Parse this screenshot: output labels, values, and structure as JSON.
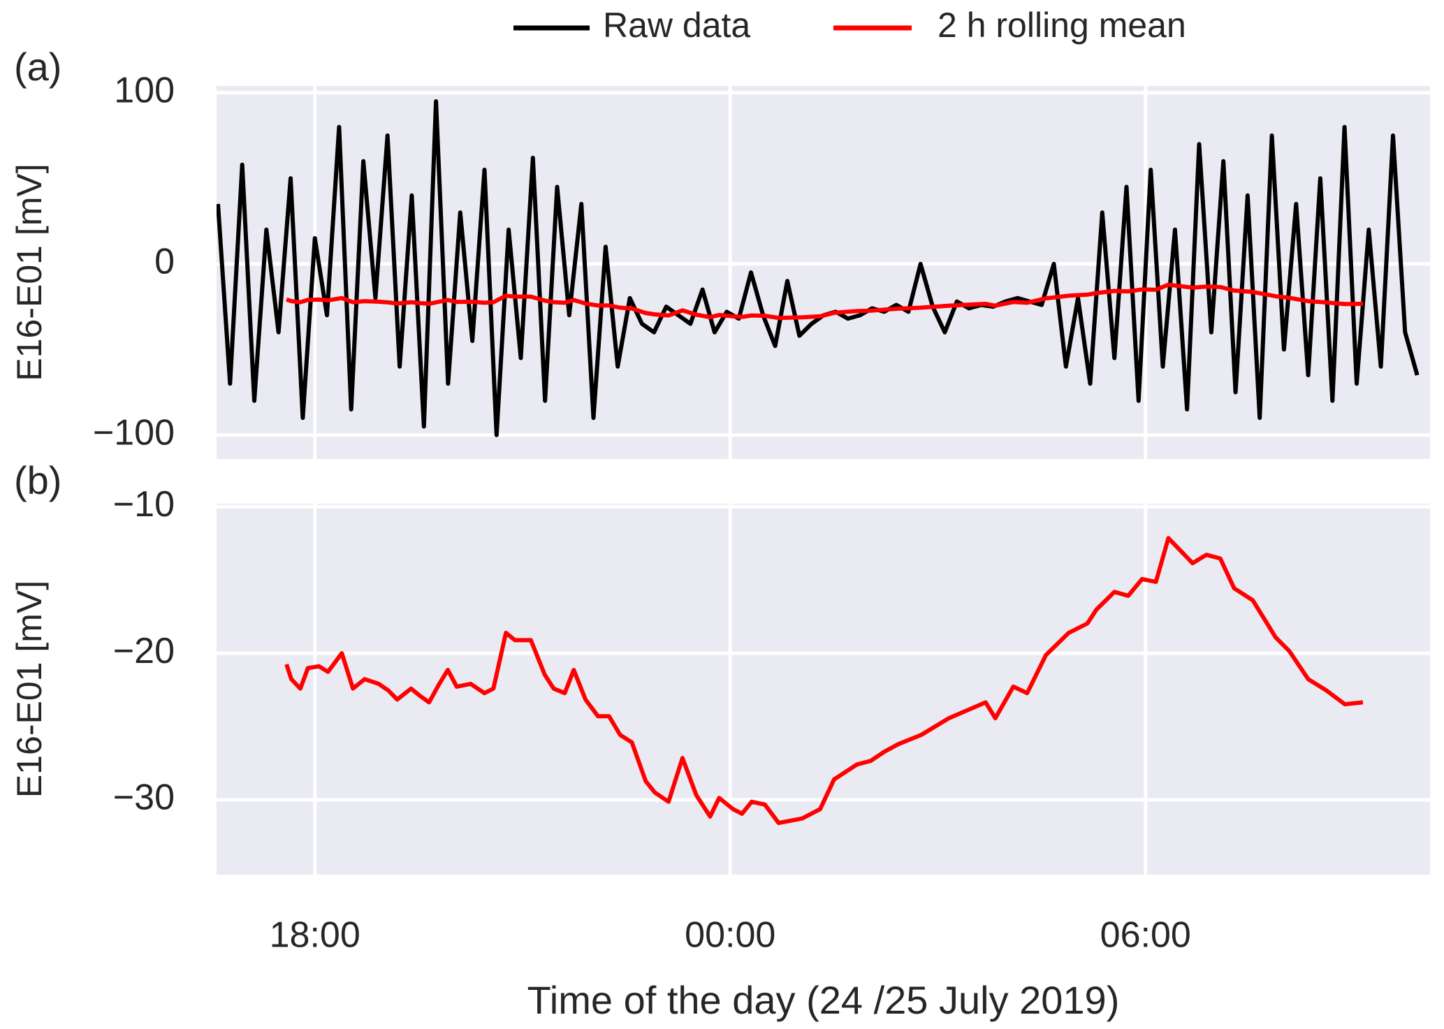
{
  "chart_data": [
    {
      "type": "line",
      "label": "(a)",
      "ylabel": "E16-E01 [mV]",
      "xlim": [
        16.58,
        34.11
      ],
      "ylim": [
        -114,
        104
      ],
      "yticks": [
        100,
        0,
        {
          "value": -100,
          "label": "−100"
        }
      ],
      "grid": true,
      "legend": "top",
      "series": [
        {
          "name": "Raw data",
          "color": "#000000",
          "x": [
            16.6,
            16.775,
            16.95,
            17.125,
            17.3,
            17.475,
            17.65,
            17.825,
            18,
            18.175,
            18.35,
            18.525,
            18.7,
            18.875,
            19.05,
            19.225,
            19.4,
            19.575,
            19.75,
            19.925,
            20.1,
            20.275,
            20.45,
            20.625,
            20.8,
            20.975,
            21.15,
            21.325,
            21.5,
            21.675,
            21.85,
            22.025,
            22.2,
            22.375,
            22.55,
            22.725,
            22.9,
            23.075,
            23.25,
            23.425,
            23.6,
            23.775,
            23.95,
            24.125,
            24.3,
            24.475,
            24.65,
            24.825,
            25,
            25.175,
            25.35,
            25.525,
            25.7,
            25.875,
            26.05,
            26.225,
            26.4,
            26.575,
            26.75,
            26.925,
            27.1,
            27.275,
            27.45,
            27.625,
            27.8,
            27.975,
            28.15,
            28.325,
            28.5,
            28.675,
            28.85,
            29.025,
            29.2,
            29.375,
            29.55,
            29.725,
            29.9,
            30.075,
            30.25,
            30.425,
            30.6,
            30.775,
            30.95,
            31.125,
            31.3,
            31.475,
            31.65,
            31.825,
            32,
            32.175,
            32.35,
            32.525,
            32.7,
            32.875,
            33.05,
            33.225,
            33.4,
            33.575,
            33.75,
            33.925
          ],
          "values": [
            35,
            -70,
            58,
            -80,
            20,
            -40,
            50,
            -90,
            15,
            -30,
            80,
            -85,
            60,
            -20,
            75,
            -60,
            40,
            -95,
            95,
            -70,
            30,
            -45,
            55,
            -100,
            20,
            -55,
            62,
            -80,
            45,
            -30,
            35,
            -90,
            10,
            -60,
            -20,
            -35,
            -40,
            -25,
            -30,
            -35,
            -15,
            -40,
            -28,
            -32,
            -5,
            -30,
            -48,
            -10,
            -42,
            -35,
            -30,
            -28,
            -32,
            -30,
            -26,
            -28,
            -24,
            -28,
            0,
            -25,
            -40,
            -22,
            -26,
            -24,
            -25,
            -22,
            -20,
            -22,
            -24,
            0,
            -60,
            -20,
            -70,
            30,
            -55,
            45,
            -80,
            55,
            -60,
            20,
            -85,
            70,
            -40,
            60,
            -75,
            40,
            -90,
            75,
            -50,
            35,
            -65,
            50,
            -80,
            80,
            -70,
            20,
            -60,
            75,
            -40,
            -65
          ]
        },
        {
          "name": "2 h rolling mean",
          "color": "#ff0000",
          "x": [
            17.59,
            17.66,
            17.79,
            17.9,
            18.06,
            18.19,
            18.39,
            18.55,
            18.72,
            18.92,
            19.06,
            19.19,
            19.39,
            19.52,
            19.65,
            19.79,
            19.92,
            20.05,
            20.25,
            20.45,
            20.58,
            20.76,
            20.89,
            21.12,
            21.32,
            21.45,
            21.61,
            21.74,
            21.91,
            22.09,
            22.25,
            22.41,
            22.58,
            22.78,
            22.91,
            23.11,
            23.31,
            23.51,
            23.71,
            23.84,
            24.04,
            24.17,
            24.31,
            24.5,
            24.7,
            25.04,
            25.3,
            25.5,
            25.83,
            26.03,
            26.23,
            26.43,
            26.76,
            27.16,
            27.69,
            27.83,
            28.09,
            28.29,
            28.56,
            28.89,
            29.16,
            29.29,
            29.55,
            29.75,
            29.95,
            30.15,
            30.33,
            30.46,
            30.68,
            30.88,
            31.08,
            31.28,
            31.55,
            31.88,
            32.08,
            32.35,
            32.61,
            32.88,
            33.14
          ],
          "values": [
            -20.76,
            -21.77,
            -22.41,
            -21.01,
            -20.89,
            -21.27,
            -20,
            -22.41,
            -21.77,
            -22.09,
            -22.53,
            -23.16,
            -22.41,
            -22.91,
            -23.35,
            -22.15,
            -21.14,
            -22.28,
            -22.09,
            -22.72,
            -22.41,
            -18.61,
            -19.11,
            -19.11,
            -21.46,
            -22.41,
            -22.72,
            -21.14,
            -23.16,
            -24.3,
            -24.3,
            -25.57,
            -26.08,
            -28.73,
            -29.49,
            -30.13,
            -27.15,
            -29.68,
            -31.14,
            -29.87,
            -30.63,
            -30.95,
            -30.13,
            -30.32,
            -31.58,
            -31.27,
            -30.63,
            -28.61,
            -27.59,
            -27.34,
            -26.71,
            -26.2,
            -25.57,
            -24.43,
            -23.35,
            -24.43,
            -22.28,
            -22.72,
            -20.13,
            -18.61,
            -17.97,
            -17.03,
            -15.82,
            -16.08,
            -14.94,
            -15.13,
            -12.15,
            -12.78,
            -13.86,
            -13.29,
            -13.54,
            -15.57,
            -16.39,
            -18.92,
            -19.87,
            -21.77,
            -22.53,
            -23.48,
            -23.35
          ]
        }
      ]
    },
    {
      "type": "line",
      "label": "(b)",
      "ylabel": "E16-E01 [mV]",
      "xlabel": "Time of the day (24 /25 July 2019)",
      "xlim": [
        16.58,
        34.11
      ],
      "ylim": [
        -35.1,
        -9.8
      ],
      "xticks": [
        {
          "value": 18,
          "label": "18:00"
        },
        {
          "value": 24,
          "label": "00:00"
        },
        {
          "value": 30,
          "label": "06:00"
        }
      ],
      "yticks": [
        {
          "value": -10,
          "label": "−10"
        },
        {
          "value": -20,
          "label": "−20"
        },
        {
          "value": -30,
          "label": "−30"
        }
      ],
      "grid": true,
      "series": [
        {
          "color": "#ff0000",
          "x": [
            17.59,
            17.66,
            17.79,
            17.9,
            18.06,
            18.19,
            18.39,
            18.55,
            18.72,
            18.92,
            19.06,
            19.19,
            19.39,
            19.52,
            19.65,
            19.79,
            19.92,
            20.05,
            20.25,
            20.45,
            20.58,
            20.76,
            20.89,
            21.12,
            21.32,
            21.45,
            21.61,
            21.74,
            21.91,
            22.09,
            22.25,
            22.41,
            22.58,
            22.78,
            22.91,
            23.11,
            23.31,
            23.51,
            23.71,
            23.84,
            24.04,
            24.17,
            24.31,
            24.5,
            24.7,
            25.04,
            25.3,
            25.5,
            25.83,
            26.03,
            26.23,
            26.43,
            26.76,
            27.16,
            27.69,
            27.83,
            28.09,
            28.29,
            28.56,
            28.89,
            29.16,
            29.29,
            29.55,
            29.75,
            29.95,
            30.15,
            30.33,
            30.46,
            30.68,
            30.88,
            31.08,
            31.28,
            31.55,
            31.88,
            32.08,
            32.35,
            32.61,
            32.88,
            33.14
          ],
          "values": [
            -20.76,
            -21.77,
            -22.41,
            -21.01,
            -20.89,
            -21.27,
            -20,
            -22.41,
            -21.77,
            -22.09,
            -22.53,
            -23.16,
            -22.41,
            -22.91,
            -23.35,
            -22.15,
            -21.14,
            -22.28,
            -22.09,
            -22.72,
            -22.41,
            -18.61,
            -19.11,
            -19.11,
            -21.46,
            -22.41,
            -22.72,
            -21.14,
            -23.16,
            -24.3,
            -24.3,
            -25.57,
            -26.08,
            -28.73,
            -29.49,
            -30.13,
            -27.15,
            -29.68,
            -31.14,
            -29.87,
            -30.63,
            -30.95,
            -30.13,
            -30.32,
            -31.58,
            -31.27,
            -30.63,
            -28.61,
            -27.59,
            -27.34,
            -26.71,
            -26.2,
            -25.57,
            -24.43,
            -23.35,
            -24.43,
            -22.28,
            -22.72,
            -20.13,
            -18.61,
            -17.97,
            -17.03,
            -15.82,
            -16.08,
            -14.94,
            -15.13,
            -12.15,
            -12.78,
            -13.86,
            -13.29,
            -13.54,
            -15.57,
            -16.39,
            -18.92,
            -19.87,
            -21.77,
            -22.53,
            -23.48,
            -23.35
          ]
        }
      ]
    }
  ]
}
